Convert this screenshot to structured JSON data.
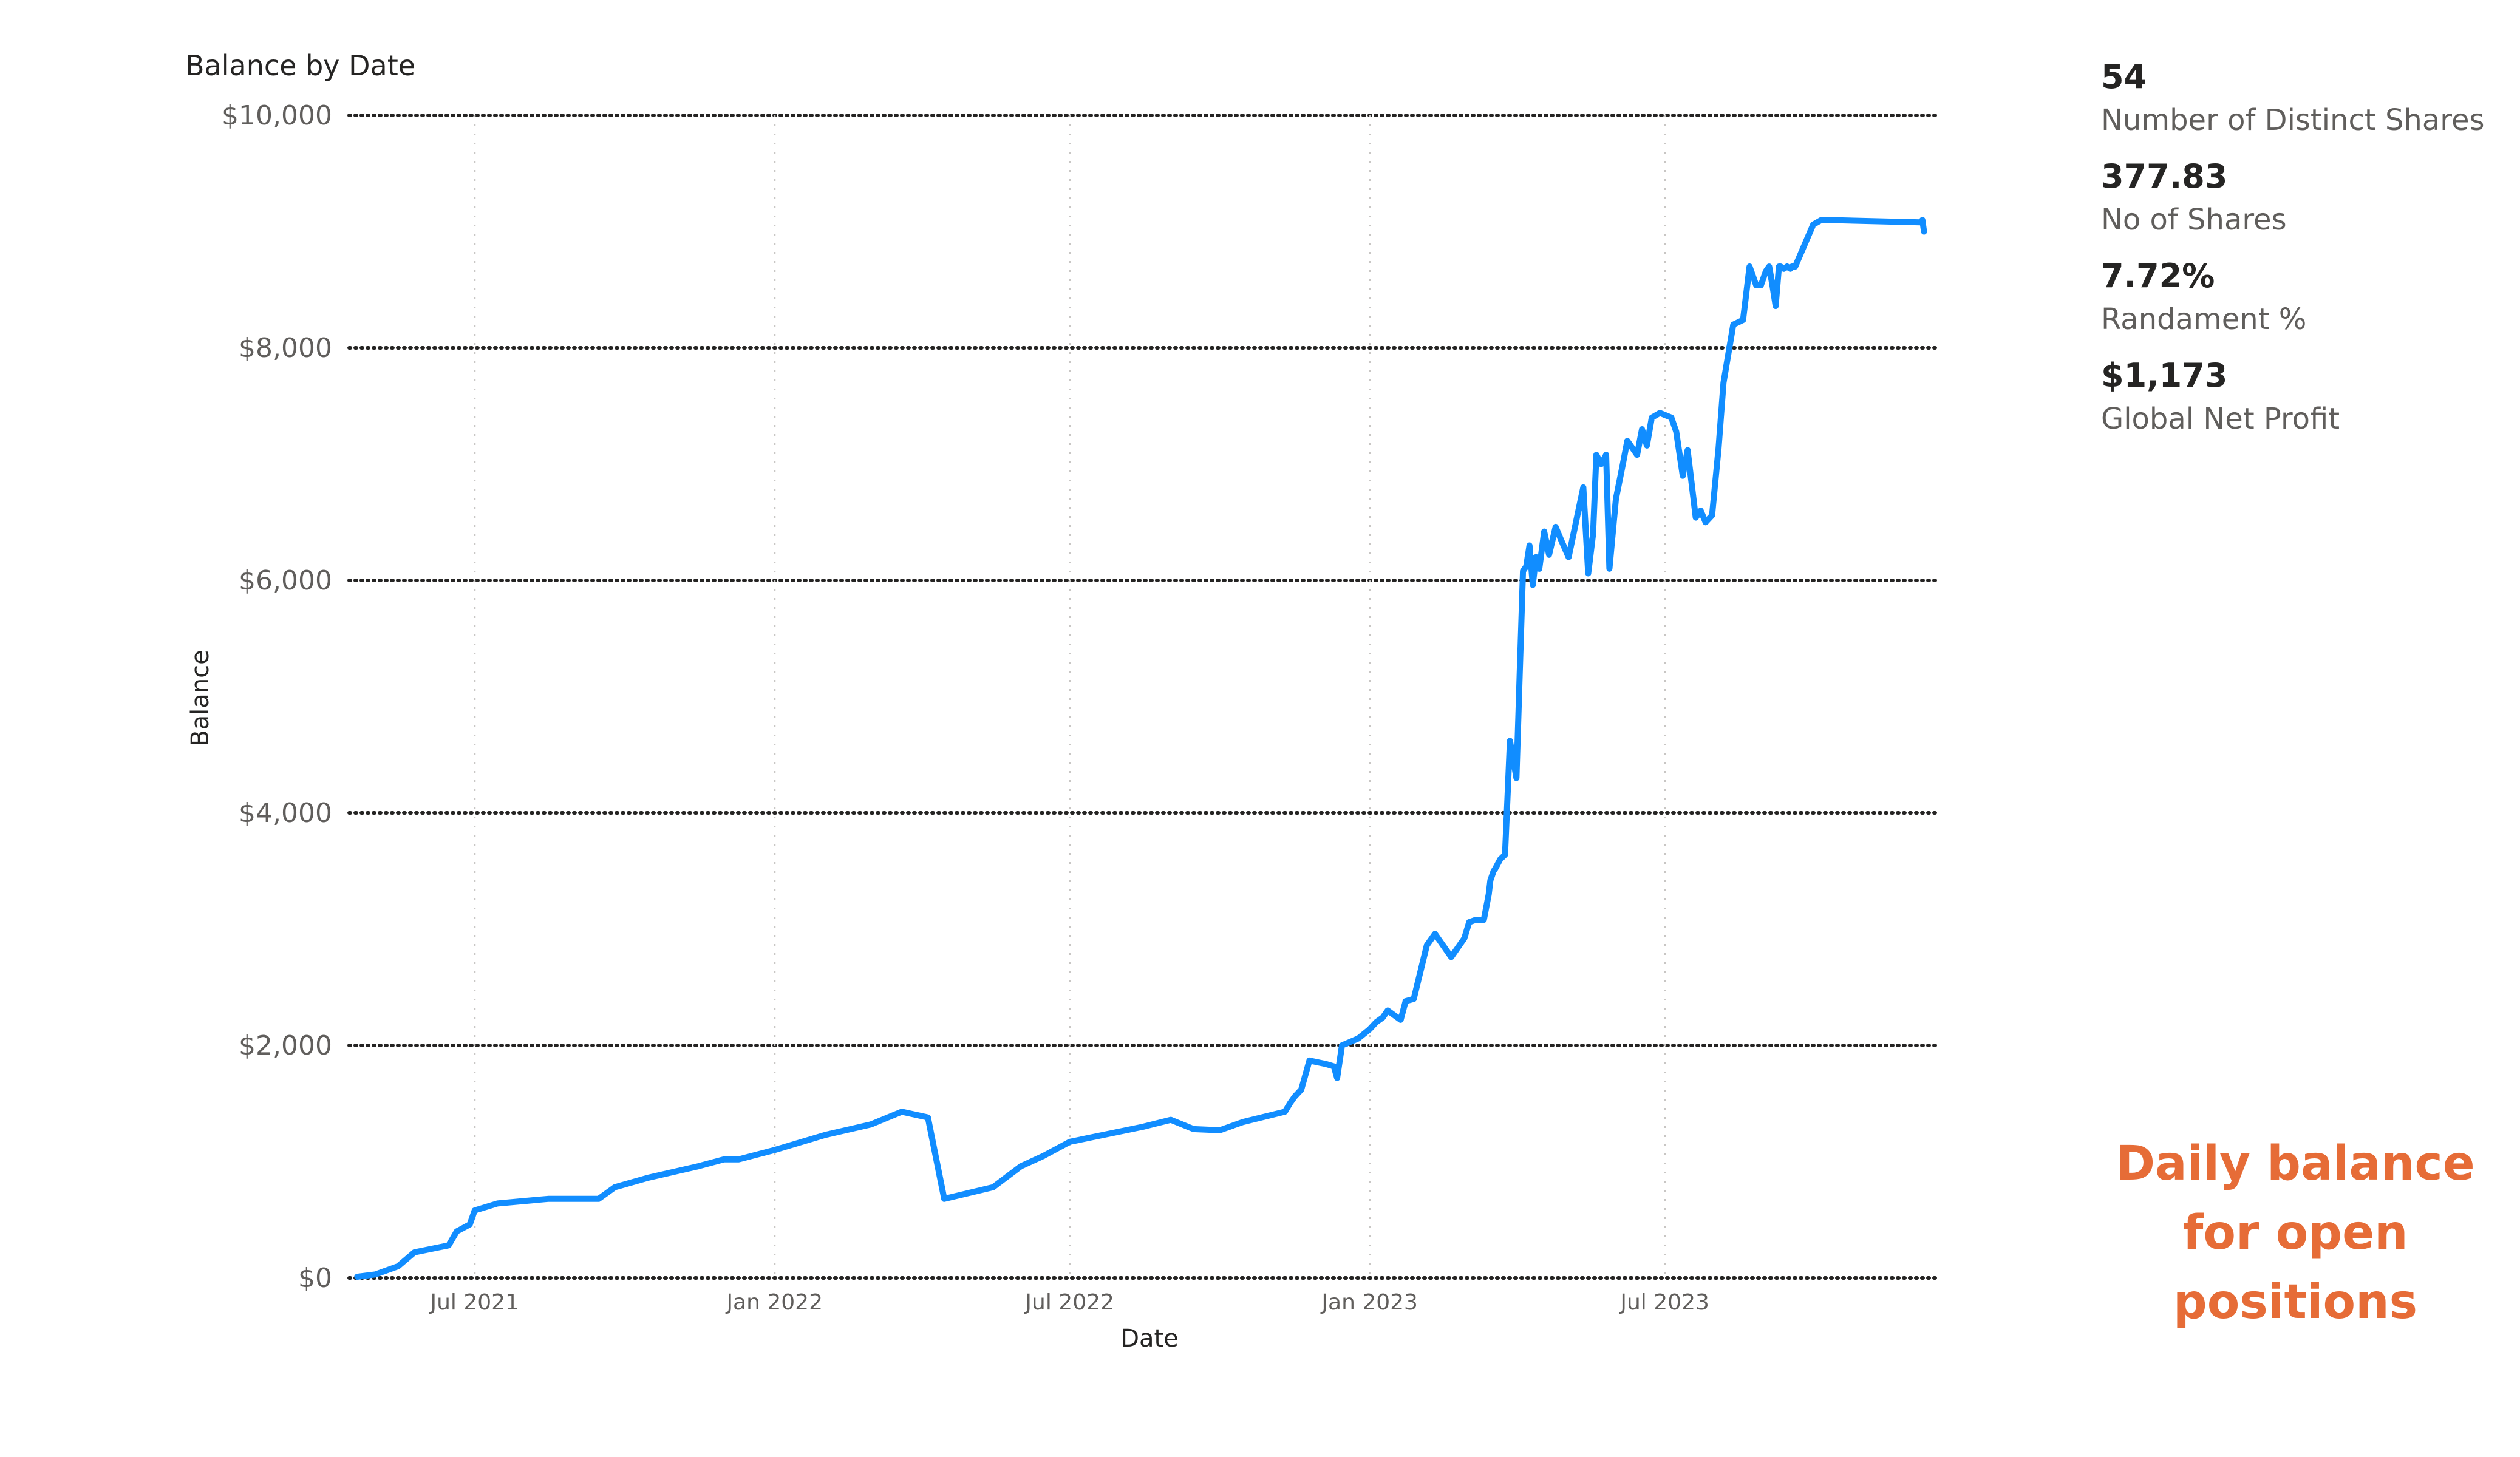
{
  "chart_data": {
    "type": "line",
    "title": "Balance by Date",
    "xlabel": "Date",
    "ylabel": "Balance",
    "x_range": [
      "2021-04-15",
      "2023-12-15"
    ],
    "ylim": [
      0,
      10000
    ],
    "y_ticks": [
      0,
      2000,
      4000,
      6000,
      8000,
      10000
    ],
    "y_tick_labels": [
      "$0",
      "$2,000",
      "$4,000",
      "$6,000",
      "$8,000",
      "$10,000"
    ],
    "x_ticks": [
      "2021-07-01",
      "2022-01-01",
      "2022-07-01",
      "2023-01-01",
      "2023-07-01"
    ],
    "x_tick_labels": [
      "Jul 2021",
      "Jan 2022",
      "Jul 2022",
      "Jan 2023",
      "Jul 2023"
    ],
    "grid": true,
    "line_color": "#118dff",
    "series": [
      {
        "x": [
          "2021-04-20",
          "2021-05-01",
          "2021-05-15",
          "2021-05-25",
          "2021-06-15",
          "2021-06-20",
          "2021-06-28",
          "2021-07-01",
          "2021-07-15",
          "2021-08-15",
          "2021-09-15",
          "2021-09-25",
          "2021-10-15",
          "2021-11-15",
          "2021-12-01",
          "2021-12-10",
          "2022-01-01",
          "2022-02-01",
          "2022-03-01",
          "2022-03-20",
          "2022-04-05",
          "2022-04-15",
          "2022-05-15",
          "2022-06-01",
          "2022-06-15",
          "2022-07-01",
          "2022-08-15",
          "2022-09-01",
          "2022-09-15",
          "2022-10-01",
          "2022-10-15",
          "2022-11-10",
          "2022-11-13",
          "2022-11-16",
          "2022-11-20",
          "2022-11-25",
          "2022-12-05",
          "2022-12-10",
          "2022-12-12",
          "2022-12-15",
          "2022-12-25",
          "2023-01-01",
          "2023-01-05",
          "2023-01-09",
          "2023-01-12",
          "2023-01-20",
          "2023-01-23",
          "2023-01-28",
          "2023-02-05",
          "2023-02-10",
          "2023-02-20",
          "2023-02-28",
          "2023-03-03",
          "2023-03-07",
          "2023-03-12",
          "2023-03-15",
          "2023-03-16",
          "2023-03-18",
          "2023-03-19",
          "2023-03-22",
          "2023-03-25",
          "2023-03-28",
          "2023-04-01",
          "2023-04-03",
          "2023-04-05",
          "2023-04-07",
          "2023-04-09",
          "2023-04-11",
          "2023-04-13",
          "2023-04-15",
          "2023-04-18",
          "2023-04-21",
          "2023-04-25",
          "2023-04-28",
          "2023-05-03",
          "2023-05-06",
          "2023-05-09",
          "2023-05-12",
          "2023-05-15",
          "2023-05-18",
          "2023-05-20",
          "2023-05-23",
          "2023-05-26",
          "2023-05-28",
          "2023-06-01",
          "2023-06-05",
          "2023-06-08",
          "2023-06-10",
          "2023-06-14",
          "2023-06-17",
          "2023-06-20",
          "2023-06-23",
          "2023-06-28",
          "2023-07-05",
          "2023-07-08",
          "2023-07-12",
          "2023-07-15",
          "2023-07-20",
          "2023-07-23",
          "2023-07-26",
          "2023-07-30",
          "2023-08-03",
          "2023-08-06",
          "2023-08-12",
          "2023-08-18",
          "2023-08-22",
          "2023-08-26",
          "2023-08-29",
          "2023-09-01",
          "2023-09-03",
          "2023-09-05",
          "2023-09-07",
          "2023-09-09",
          "2023-09-10",
          "2023-09-12",
          "2023-09-14",
          "2023-09-16",
          "2023-09-17",
          "2023-09-19",
          "2023-09-30",
          "2023-10-05",
          "2023-10-07",
          "2023-12-05",
          "2023-12-06",
          "2023-12-07"
        ],
        "y": [
          10,
          30,
          100,
          220,
          280,
          400,
          460,
          580,
          640,
          680,
          680,
          780,
          860,
          960,
          1020,
          1020,
          1100,
          1230,
          1320,
          1430,
          1380,
          680,
          780,
          960,
          1050,
          1170,
          1300,
          1360,
          1280,
          1270,
          1340,
          1430,
          1500,
          1560,
          1620,
          1870,
          1840,
          1820,
          1720,
          2000,
          2060,
          2140,
          2200,
          2240,
          2300,
          2220,
          2380,
          2400,
          2860,
          2960,
          2760,
          2920,
          3060,
          3080,
          3080,
          3300,
          3420,
          3500,
          3520,
          3600,
          3640,
          4620,
          4300,
          5200,
          6080,
          6120,
          6300,
          5960,
          6200,
          6100,
          6420,
          6220,
          6460,
          6360,
          6200,
          6400,
          6600,
          6800,
          6060,
          6400,
          7080,
          7000,
          7080,
          6100,
          6700,
          6980,
          7200,
          7160,
          7080,
          7300,
          7160,
          7400,
          7440,
          7400,
          7280,
          6900,
          7120,
          6540,
          6600,
          6500,
          6560,
          7140,
          7700,
          8200,
          8240,
          8700,
          8540,
          8540,
          8660,
          8700,
          8540,
          8360,
          8700,
          8700,
          8680,
          8700,
          8680,
          8700,
          8700,
          9060,
          9100,
          9100,
          9080,
          9100,
          9000
        ]
      }
    ]
  },
  "cards": [
    {
      "value": "54",
      "label": "Number of Distinct Shares"
    },
    {
      "value": "377.83",
      "label": "No of Shares"
    },
    {
      "value": "7.72%",
      "label": "Randament %"
    },
    {
      "value": "$1,173",
      "label": "Global Net Profit"
    }
  ],
  "note": {
    "lines": [
      "Daily balance",
      "for open",
      "positions"
    ],
    "color": "#e66c37"
  }
}
